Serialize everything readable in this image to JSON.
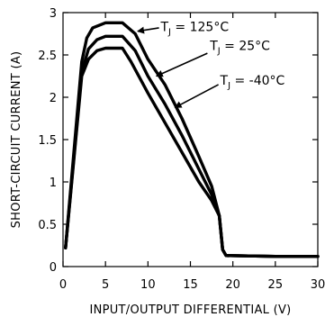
{
  "chart_data": {
    "type": "line",
    "xlabel": "INPUT/OUTPUT DIFFERENTIAL (V)",
    "ylabel": "SHORT-CIRCUIT CURRENT (A)",
    "xlim": [
      0,
      30
    ],
    "ylim": [
      0,
      3
    ],
    "x_ticks": [
      0,
      5,
      10,
      15,
      20,
      25,
      30
    ],
    "y_ticks": [
      0,
      0.5,
      1,
      1.5,
      2,
      2.5,
      3
    ],
    "x_tick_labels": [
      "0",
      "5",
      "10",
      "15",
      "20",
      "25",
      "30"
    ],
    "y_tick_labels": [
      "0",
      "0.5",
      "1",
      "1.5",
      "2",
      "2.5",
      "3"
    ],
    "grid": false,
    "series": [
      {
        "name": "TJ = 125°C",
        "label_main": "T",
        "label_sub": "J",
        "label_rest": " = 125°C",
        "points": [
          [
            0.3,
            0.22
          ],
          [
            2.2,
            2.42
          ],
          [
            2.8,
            2.7
          ],
          [
            3.5,
            2.82
          ],
          [
            5,
            2.88
          ],
          [
            7,
            2.88
          ],
          [
            8.5,
            2.75
          ],
          [
            10,
            2.45
          ],
          [
            12,
            2.15
          ],
          [
            14,
            1.75
          ],
          [
            16,
            1.3
          ],
          [
            17.5,
            0.95
          ],
          [
            18.4,
            0.6
          ],
          [
            18.8,
            0.2
          ],
          [
            19.2,
            0.13
          ],
          [
            25,
            0.12
          ],
          [
            30,
            0.12
          ]
        ]
      },
      {
        "name": "TJ = 25°C",
        "label_main": "T",
        "label_sub": "J",
        "label_rest": " = 25°C",
        "points": [
          [
            0.3,
            0.22
          ],
          [
            2.2,
            2.3
          ],
          [
            3,
            2.57
          ],
          [
            4,
            2.68
          ],
          [
            5,
            2.72
          ],
          [
            7,
            2.72
          ],
          [
            8.5,
            2.55
          ],
          [
            10,
            2.25
          ],
          [
            12,
            1.92
          ],
          [
            14,
            1.55
          ],
          [
            16,
            1.15
          ],
          [
            17.5,
            0.85
          ],
          [
            18.4,
            0.6
          ],
          [
            18.8,
            0.2
          ],
          [
            19.2,
            0.13
          ],
          [
            25,
            0.12
          ],
          [
            30,
            0.12
          ]
        ]
      },
      {
        "name": "TJ = -40°C",
        "label_main": "T",
        "label_sub": "J",
        "label_rest": " = -40°C",
        "points": [
          [
            0.3,
            0.22
          ],
          [
            2.2,
            2.25
          ],
          [
            3,
            2.45
          ],
          [
            4,
            2.55
          ],
          [
            5,
            2.58
          ],
          [
            7,
            2.58
          ],
          [
            8,
            2.42
          ],
          [
            10,
            2.05
          ],
          [
            12,
            1.7
          ],
          [
            14,
            1.35
          ],
          [
            16,
            1.0
          ],
          [
            17.5,
            0.78
          ],
          [
            18.4,
            0.6
          ],
          [
            18.8,
            0.2
          ],
          [
            19.2,
            0.13
          ],
          [
            25,
            0.12
          ],
          [
            30,
            0.12
          ]
        ]
      }
    ],
    "annotations": [
      {
        "series": 0,
        "text_x": 11.5,
        "text_y": 2.78,
        "arrow_from": [
          11.3,
          2.82
        ],
        "arrow_to": [
          8.8,
          2.78
        ]
      },
      {
        "series": 1,
        "text_x": 17.3,
        "text_y": 2.56,
        "arrow_from": [
          17.0,
          2.52
        ],
        "arrow_to": [
          11.0,
          2.25
        ]
      },
      {
        "series": 2,
        "text_x": 18.5,
        "text_y": 2.15,
        "arrow_from": [
          18.3,
          2.15
        ],
        "arrow_to": [
          13.2,
          1.88
        ]
      }
    ]
  }
}
